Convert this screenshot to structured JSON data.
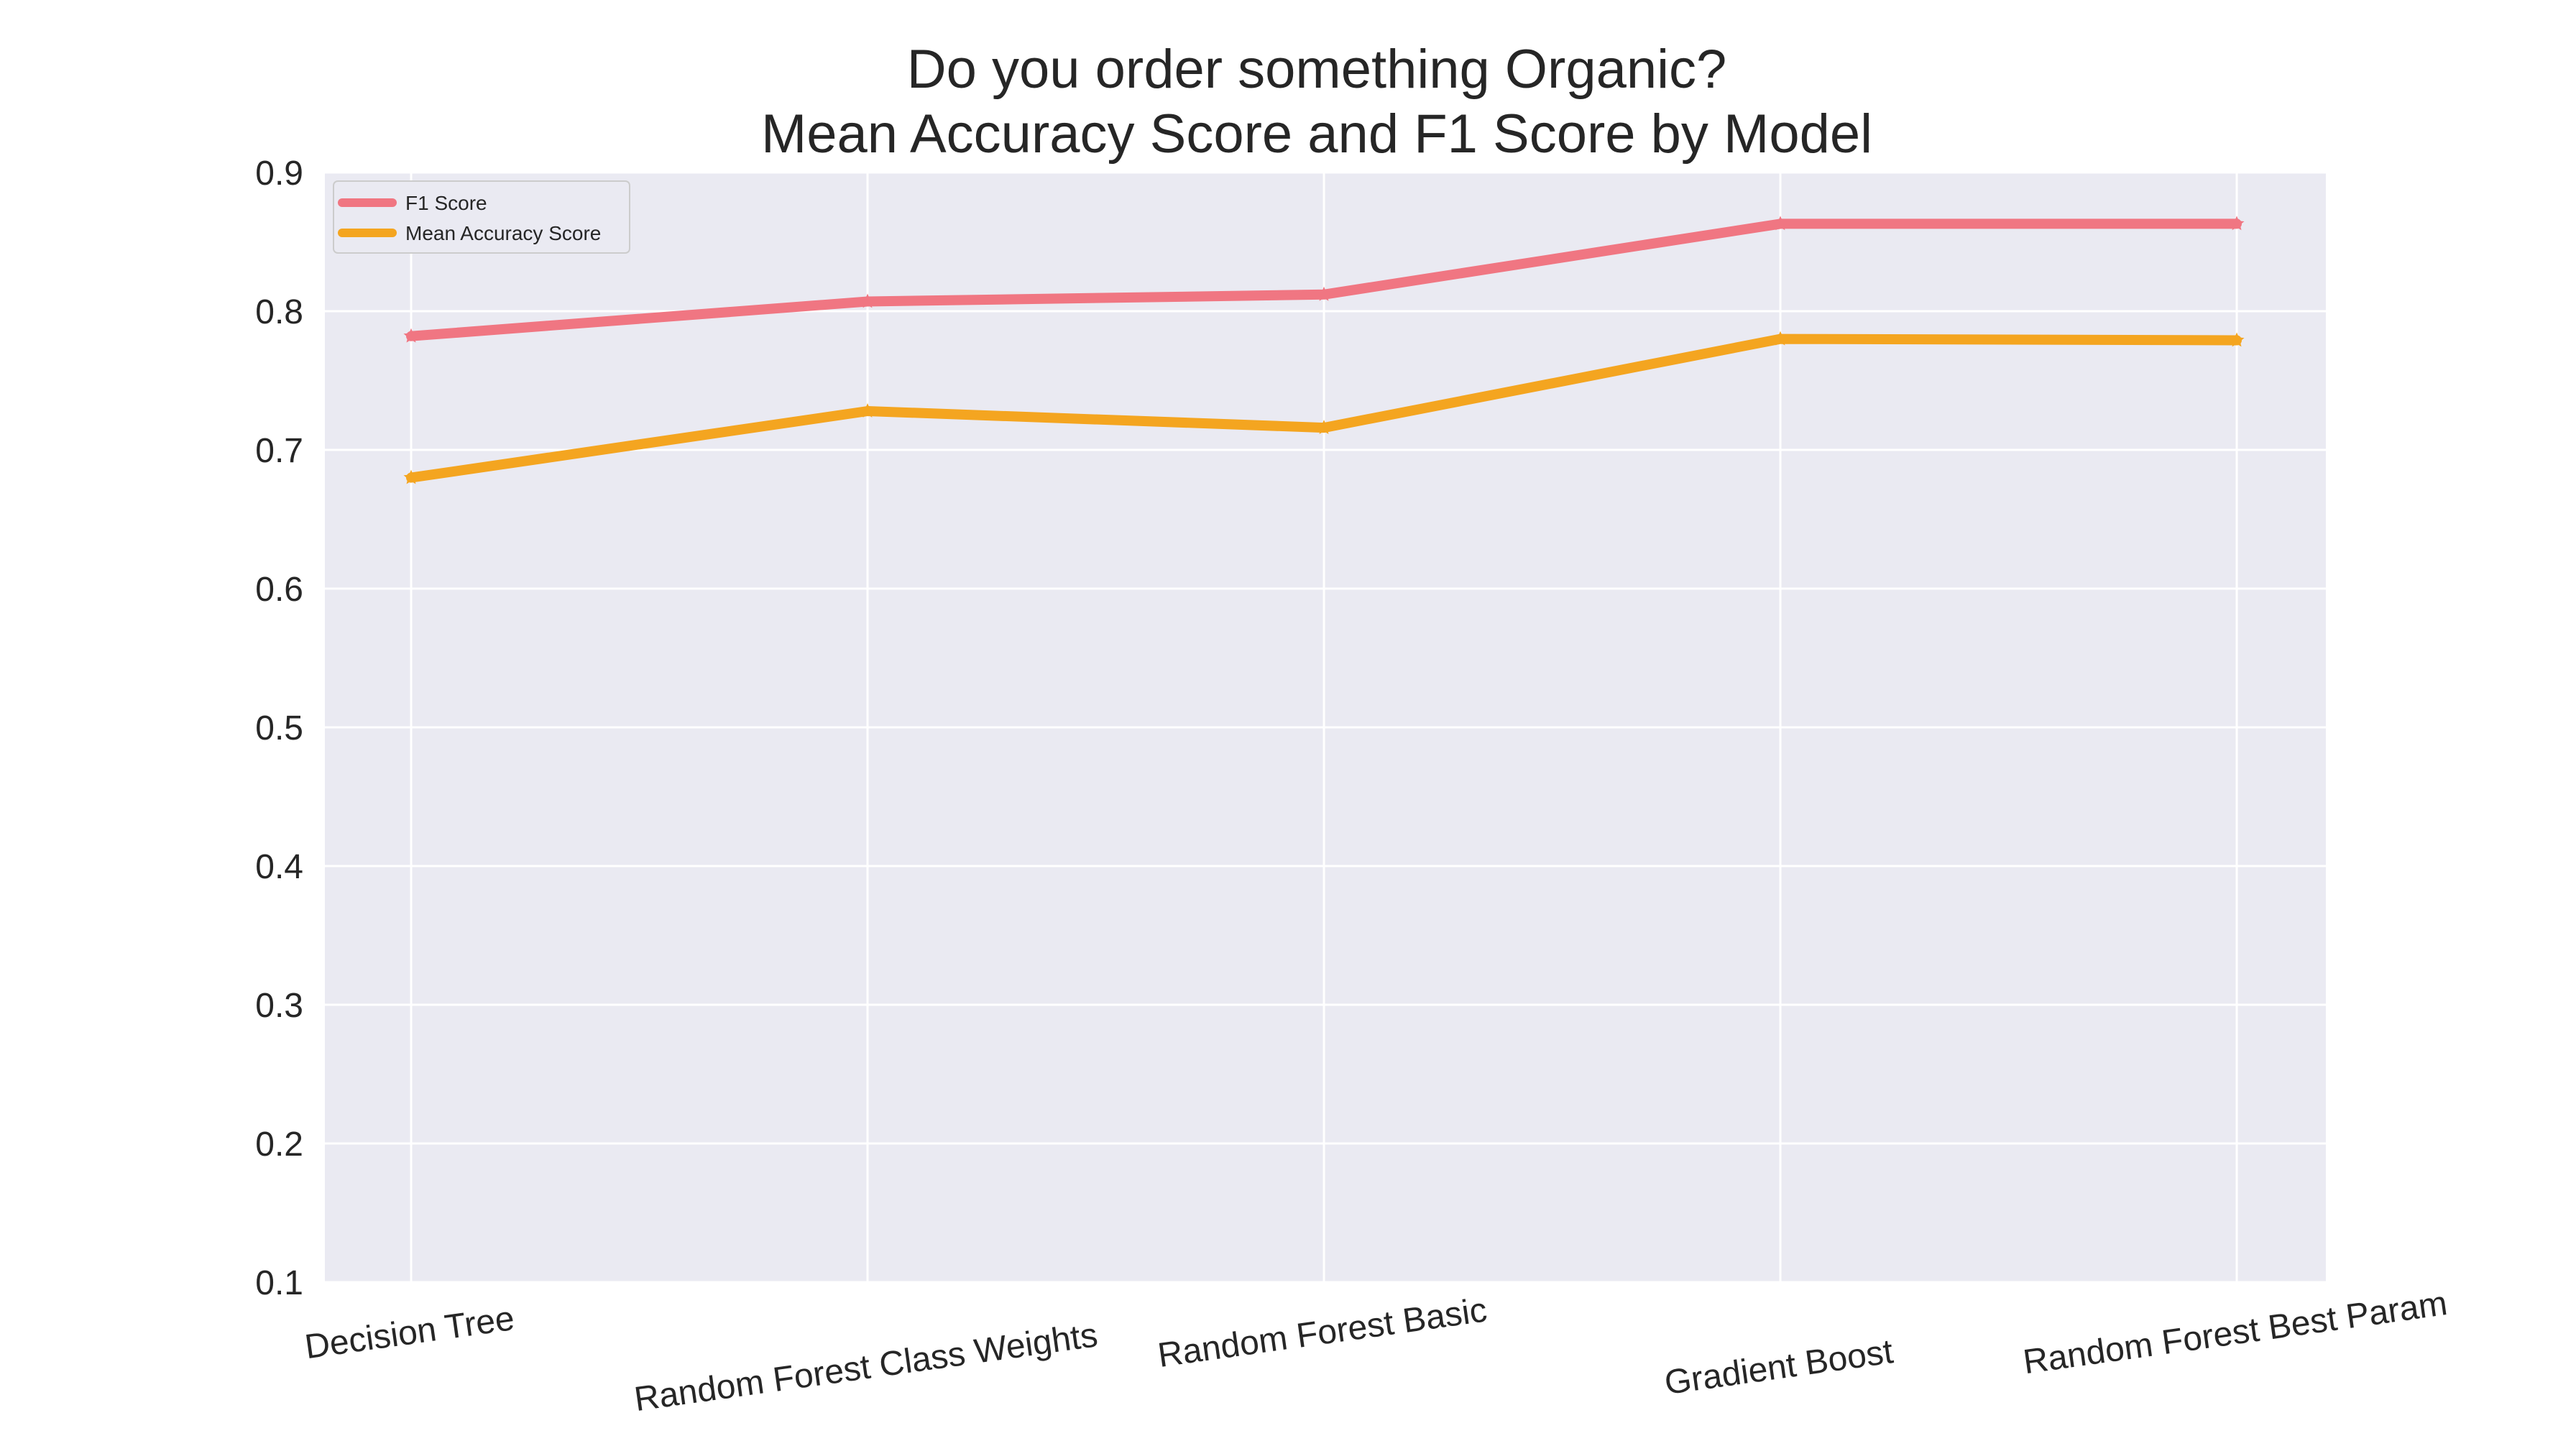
{
  "chart_data": {
    "type": "line",
    "title_lines": [
      "Do you order something Organic?",
      "Mean Accuracy Score and F1 Score by Model"
    ],
    "xlabel": "",
    "ylabel": "",
    "categories": [
      "Decision Tree",
      "Random Forest Class Weights",
      "Random Forest Basic",
      "Gradient Boost",
      "Random Forest Best Param"
    ],
    "ylim": [
      0.1,
      0.9
    ],
    "yticks": [
      "0.1",
      "0.2",
      "0.3",
      "0.4",
      "0.5",
      "0.6",
      "0.7",
      "0.8",
      "0.9"
    ],
    "grid": true,
    "legend_position": "top-left",
    "background_color": "#eaeaf2",
    "series": [
      {
        "name": "F1 Score",
        "color": "#f07682",
        "values": [
          0.782,
          0.807,
          0.812,
          0.863,
          0.863
        ]
      },
      {
        "name": "Mean Accuracy Score",
        "color": "#f4a520",
        "values": [
          0.68,
          0.728,
          0.716,
          0.78,
          0.779
        ]
      }
    ]
  }
}
